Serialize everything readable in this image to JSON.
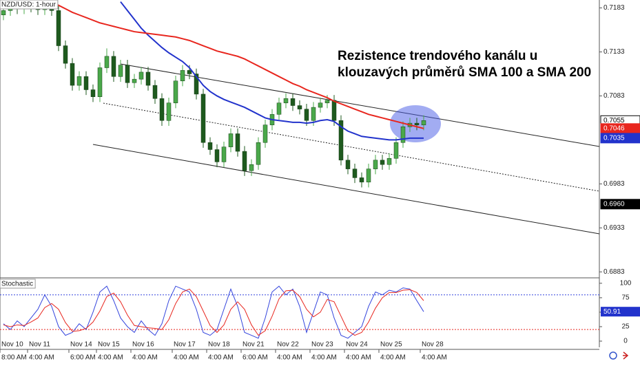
{
  "chart_data": [
    {
      "type": "candlestick",
      "title": "NZD/USD: 1-hour",
      "annotation": [
        "Rezistence trendového kanálu u",
        "klouzavých průměrů SMA 100 a SMA 200"
      ],
      "categories": [
        "Nov 10",
        null,
        null,
        null,
        "Nov 11",
        null,
        null,
        null,
        null,
        null,
        "Nov 14",
        null,
        null,
        null,
        "Nov 15",
        null,
        null,
        null,
        null,
        "Nov 16",
        null,
        null,
        null,
        null,
        null,
        "Nov 17",
        null,
        null,
        null,
        null,
        "Nov 18",
        null,
        null,
        null,
        null,
        "Nov 21",
        null,
        null,
        null,
        null,
        "Nov 22",
        null,
        null,
        null,
        null,
        "Nov 23",
        null,
        null,
        null,
        null,
        "Nov 24",
        null,
        null,
        null,
        null,
        "Nov 25",
        null,
        null,
        null,
        null,
        null,
        "Nov 28"
      ],
      "time_labels": [
        "8:00 AM",
        null,
        null,
        null,
        "4:00 AM",
        null,
        null,
        null,
        null,
        null,
        "6:00 AM",
        null,
        null,
        null,
        "4:00 AM",
        null,
        null,
        null,
        null,
        "4:00 AM",
        null,
        null,
        null,
        null,
        null,
        "4:00 AM",
        null,
        null,
        null,
        null,
        "4:00 AM",
        null,
        null,
        null,
        null,
        "6:00 AM",
        null,
        null,
        null,
        null,
        "4:00 AM",
        null,
        null,
        null,
        null,
        "4:00 AM",
        null,
        null,
        null,
        null,
        "4:00 AM",
        null,
        null,
        null,
        null,
        "4:00 AM",
        null,
        null,
        null,
        null,
        null,
        "4:00 AM"
      ],
      "open": [
        0.7175,
        0.718,
        0.7185,
        0.7182,
        0.7186,
        0.7184,
        0.7181,
        0.7188,
        0.718,
        0.714,
        0.712,
        0.7095,
        0.7105,
        0.709,
        0.7082,
        0.7115,
        0.7128,
        0.7105,
        0.7118,
        0.7098,
        0.7102,
        0.711,
        0.7095,
        0.708,
        0.7055,
        0.7075,
        0.71,
        0.7112,
        0.7108,
        0.7085,
        0.703,
        0.7022,
        0.7008,
        0.7025,
        0.704,
        0.702,
        0.6998,
        0.7005,
        0.703,
        0.705,
        0.7062,
        0.7075,
        0.708,
        0.7072,
        0.7068,
        0.7055,
        0.707,
        0.7075,
        0.7078,
        0.7055,
        0.701,
        0.7,
        0.699,
        0.6985,
        0.7,
        0.701,
        0.7005,
        0.7012,
        0.703,
        0.7048,
        0.7052,
        0.705
      ],
      "high": [
        0.7186,
        0.7191,
        0.7191,
        0.7192,
        0.7192,
        0.719,
        0.7192,
        0.7192,
        0.7186,
        0.7146,
        0.7126,
        0.7111,
        0.7111,
        0.7096,
        0.7121,
        0.7137,
        0.7134,
        0.7124,
        0.7124,
        0.7108,
        0.7116,
        0.7116,
        0.7101,
        0.7086,
        0.7081,
        0.7106,
        0.7118,
        0.7118,
        0.7114,
        0.7091,
        0.7036,
        0.7028,
        0.7031,
        0.7046,
        0.7046,
        0.7026,
        0.7011,
        0.7036,
        0.7056,
        0.7068,
        0.7081,
        0.7086,
        0.7086,
        0.7078,
        0.7074,
        0.7076,
        0.7081,
        0.7084,
        0.7084,
        0.7061,
        0.7016,
        0.7006,
        0.6996,
        0.7006,
        0.7016,
        0.7016,
        0.7018,
        0.7036,
        0.7054,
        0.7058,
        0.7058,
        0.7061
      ],
      "low": [
        0.7169,
        0.7174,
        0.7176,
        0.7176,
        0.7178,
        0.7175,
        0.7175,
        0.7174,
        0.7134,
        0.7114,
        0.7089,
        0.7089,
        0.7084,
        0.7076,
        0.7076,
        0.7109,
        0.7099,
        0.7099,
        0.7092,
        0.7092,
        0.7096,
        0.7089,
        0.7074,
        0.7049,
        0.7049,
        0.7069,
        0.7094,
        0.7102,
        0.7079,
        0.7024,
        0.7016,
        0.7002,
        0.7002,
        0.7019,
        0.7014,
        0.6992,
        0.6992,
        0.6999,
        0.7024,
        0.7044,
        0.7056,
        0.7069,
        0.7066,
        0.7062,
        0.7049,
        0.7049,
        0.7064,
        0.7069,
        0.7049,
        0.7004,
        0.6994,
        0.6984,
        0.6979,
        0.6979,
        0.6994,
        0.6999,
        0.6999,
        0.7006,
        0.7024,
        0.7042,
        0.7044,
        0.7044
      ],
      "close": [
        0.718,
        0.7185,
        0.7182,
        0.7186,
        0.7184,
        0.7181,
        0.7188,
        0.718,
        0.714,
        0.712,
        0.7095,
        0.7105,
        0.709,
        0.7082,
        0.7115,
        0.7128,
        0.7105,
        0.7118,
        0.7098,
        0.7102,
        0.711,
        0.7095,
        0.708,
        0.7055,
        0.7075,
        0.71,
        0.7112,
        0.7108,
        0.7085,
        0.703,
        0.7022,
        0.7008,
        0.7025,
        0.704,
        0.702,
        0.6998,
        0.7005,
        0.703,
        0.705,
        0.7062,
        0.7075,
        0.708,
        0.7072,
        0.7068,
        0.7055,
        0.707,
        0.7075,
        0.7078,
        0.7055,
        0.701,
        0.7,
        0.699,
        0.6985,
        0.7,
        0.701,
        0.7005,
        0.7012,
        0.703,
        0.7048,
        0.7052,
        0.705,
        0.7055
      ],
      "up_color": "#4aa84a",
      "down_color": "#1e5a1e",
      "series": [
        {
          "color": "#2233cc",
          "values": [
            null,
            null,
            null,
            null,
            null,
            null,
            null,
            null,
            null,
            null,
            null,
            null,
            null,
            null,
            null,
            null,
            null,
            0.719,
            0.718,
            0.717,
            0.716,
            0.7152,
            0.7145,
            0.7138,
            0.7132,
            0.7127,
            0.7122,
            0.7115,
            0.7105,
            0.7095,
            0.7088,
            0.7083,
            0.7079,
            0.7076,
            0.7073,
            0.707,
            0.7066,
            0.7062,
            0.7058,
            0.7056,
            0.7055,
            0.7054,
            0.7053,
            0.7053,
            0.7052,
            0.7053,
            0.7055,
            0.7056,
            0.7054,
            0.7048,
            0.7043,
            0.704,
            0.7037,
            0.7036,
            0.7035,
            0.7034,
            0.7033,
            0.7033,
            0.7034,
            0.7035,
            0.7035,
            0.7035
          ]
        },
        {
          "color": "#e8261e",
          "values": [
            null,
            null,
            null,
            null,
            null,
            null,
            null,
            0.719,
            0.7186,
            0.7182,
            0.7178,
            0.7175,
            0.7172,
            0.7169,
            0.7166,
            0.7164,
            0.7162,
            0.716,
            0.7158,
            0.7156,
            0.7155,
            0.7154,
            0.7153,
            0.7152,
            0.7151,
            0.715,
            0.7148,
            0.7146,
            0.7143,
            0.714,
            0.7137,
            0.7134,
            0.7132,
            0.713,
            0.7128,
            0.7125,
            0.7121,
            0.7117,
            0.7113,
            0.7109,
            0.7105,
            0.7101,
            0.7097,
            0.7094,
            0.709,
            0.7087,
            0.7084,
            0.7081,
            0.7077,
            0.7074,
            0.7071,
            0.7068,
            0.7065,
            0.7062,
            0.706,
            0.7058,
            0.7056,
            0.7054,
            0.7052,
            0.705,
            0.7048,
            0.7046
          ]
        }
      ],
      "ylim": [
        0.6877,
        0.7192
      ],
      "yticks": [
        0.7183,
        0.7133,
        0.7083,
        0.6983,
        0.6933,
        0.6883
      ],
      "price_markers": [
        {
          "value": 0.7055,
          "color": "#ffffff"
        },
        {
          "value": 0.7046,
          "color": "#e8261e"
        },
        {
          "value": 0.7035,
          "color": "#2233cc"
        },
        {
          "value": 0.696,
          "label": "0.6960",
          "color": "#000000"
        }
      ]
    },
    {
      "type": "stochastic",
      "title": "Stochastic",
      "series": [
        {
          "color": "#3344dd",
          "values": [
            30,
            20,
            35,
            25,
            40,
            55,
            80,
            60,
            25,
            10,
            15,
            30,
            20,
            50,
            85,
            95,
            70,
            40,
            25,
            15,
            35,
            20,
            10,
            30,
            70,
            95,
            90,
            85,
            55,
            15,
            10,
            20,
            55,
            90,
            60,
            15,
            10,
            5,
            40,
            85,
            95,
            80,
            90,
            60,
            15,
            50,
            85,
            80,
            40,
            10,
            5,
            15,
            25,
            60,
            85,
            80,
            88,
            85,
            92,
            90,
            70,
            50.91
          ]
        },
        {
          "color": "#e8261e",
          "values": [
            28,
            25,
            28,
            27,
            33,
            40,
            58,
            65,
            55,
            32,
            17,
            18,
            22,
            33,
            52,
            77,
            83,
            68,
            45,
            27,
            25,
            23,
            22,
            20,
            37,
            65,
            85,
            90,
            77,
            52,
            27,
            15,
            28,
            55,
            68,
            55,
            28,
            10,
            18,
            43,
            73,
            87,
            88,
            77,
            55,
            42,
            50,
            72,
            68,
            43,
            18,
            10,
            15,
            33,
            57,
            75,
            84,
            84,
            88,
            89,
            84,
            70
          ]
        }
      ],
      "levels": [
        {
          "value": 80,
          "color": "#3344dd"
        },
        {
          "value": 20,
          "color": "#e8261e"
        }
      ],
      "last_value": 50.91,
      "last_color": "#2233cc",
      "ylim": [
        -10.7,
        107
      ],
      "yticks": [
        100,
        75,
        50,
        25,
        0
      ]
    }
  ]
}
